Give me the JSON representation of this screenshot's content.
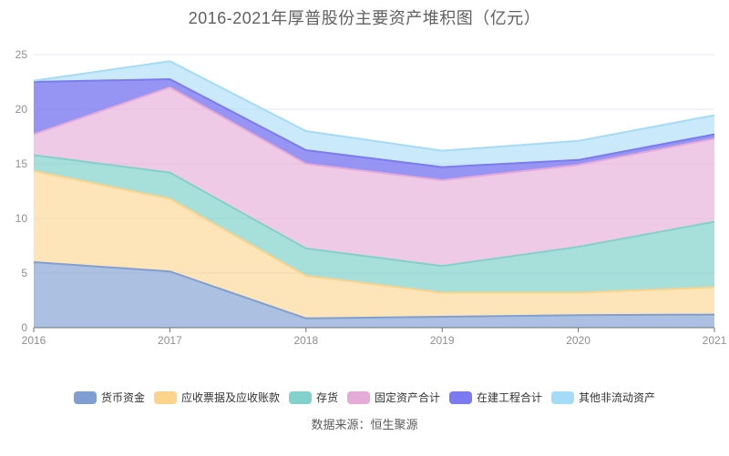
{
  "source": "数据来源：恒生聚源",
  "colors": {
    "background": "#ffffff",
    "title_text": "#606060",
    "legend_text": "#333333",
    "source_text": "#5c5c5c",
    "axis_line": "#6e7079",
    "axis_label": "#8f8f8f",
    "grid_line": "#e4e4f2"
  },
  "chart_data": {
    "type": "area",
    "stacked": true,
    "title": "2016-2021年厚普股份主要资产堆积图（亿元）",
    "x": [
      "2016",
      "2017",
      "2018",
      "2019",
      "2020",
      "2021"
    ],
    "xlabel": "",
    "ylabel": "",
    "ylim": [
      0,
      25
    ],
    "yticks": [
      0,
      5,
      10,
      15,
      20,
      25
    ],
    "grid": true,
    "legend_position": "bottom",
    "series": [
      {
        "name": "货币资金",
        "color": "#7f9fd2",
        "fill_opacity": 0.65,
        "values": [
          6.0,
          5.15,
          0.85,
          1.0,
          1.15,
          1.2
        ]
      },
      {
        "name": "应收票据及应收账款",
        "color": "#fbd38a",
        "fill_opacity": 0.6,
        "values": [
          8.35,
          6.65,
          3.9,
          2.2,
          2.05,
          2.5
        ]
      },
      {
        "name": "存货",
        "color": "#82d1ca",
        "fill_opacity": 0.7,
        "values": [
          1.45,
          2.4,
          2.5,
          2.45,
          4.2,
          6.0
        ]
      },
      {
        "name": "固定资产合计",
        "color": "#e5aad7",
        "fill_opacity": 0.62,
        "values": [
          1.9,
          7.8,
          7.75,
          7.85,
          7.5,
          7.6
        ]
      },
      {
        "name": "在建工程合计",
        "color": "#7c7af0",
        "fill_opacity": 0.8,
        "values": [
          4.8,
          0.75,
          1.25,
          1.2,
          0.45,
          0.4
        ]
      },
      {
        "name": "其他非流动资产",
        "color": "#a6dbf7",
        "fill_opacity": 0.6,
        "values": [
          0.1,
          1.65,
          1.75,
          1.5,
          1.75,
          1.75
        ]
      }
    ]
  }
}
